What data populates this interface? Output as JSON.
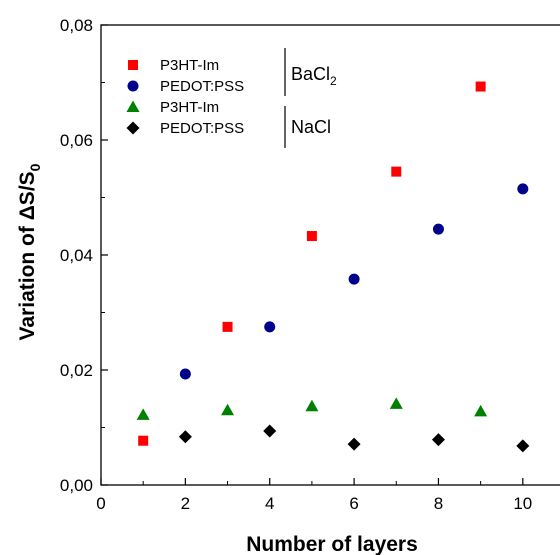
{
  "chart_data": {
    "type": "scatter",
    "xlabel": "Number of layers",
    "ylabel": "Variation of ΔS/S",
    "ylabel_subscript": "0",
    "xlim": [
      0,
      11
    ],
    "ylim": [
      0,
      0.08
    ],
    "xticks": [
      0,
      2,
      4,
      6,
      8,
      10
    ],
    "xtick_labels": [
      "0",
      "2",
      "4",
      "6",
      "8",
      "10"
    ],
    "yticks": [
      0,
      0.02,
      0.04,
      0.06,
      0.08
    ],
    "ytick_labels": [
      "0,00",
      "0,02",
      "0,04",
      "0,06",
      "0,08"
    ],
    "series": [
      {
        "name": "P3HT-Im",
        "group": "BaCl2",
        "marker": "square",
        "color": "#ff0000",
        "x": [
          1,
          3,
          5,
          7,
          9
        ],
        "y": [
          0.0077,
          0.0275,
          0.0433,
          0.0545,
          0.0693
        ]
      },
      {
        "name": "PEDOT:PSS",
        "group": "BaCl2",
        "marker": "circle",
        "color": "#00008b",
        "x": [
          2,
          4,
          6,
          8,
          10
        ],
        "y": [
          0.0193,
          0.0275,
          0.0358,
          0.0445,
          0.0515
        ]
      },
      {
        "name": "P3HT-Im",
        "group": "NaCl",
        "marker": "triangle",
        "color": "#008000",
        "x": [
          1,
          3,
          5,
          7,
          9
        ],
        "y": [
          0.0122,
          0.013,
          0.0137,
          0.0141,
          0.0128
        ]
      },
      {
        "name": "PEDOT:PSS",
        "group": "NaCl",
        "marker": "diamond",
        "color": "#000000",
        "x": [
          2,
          4,
          6,
          8,
          10
        ],
        "y": [
          0.0084,
          0.0094,
          0.0071,
          0.0079,
          0.0068
        ]
      }
    ],
    "legend_groups": [
      {
        "label": "BaCl",
        "subscript": "2"
      },
      {
        "label": "NaCl",
        "subscript": ""
      }
    ],
    "legend_position": "top-left"
  }
}
